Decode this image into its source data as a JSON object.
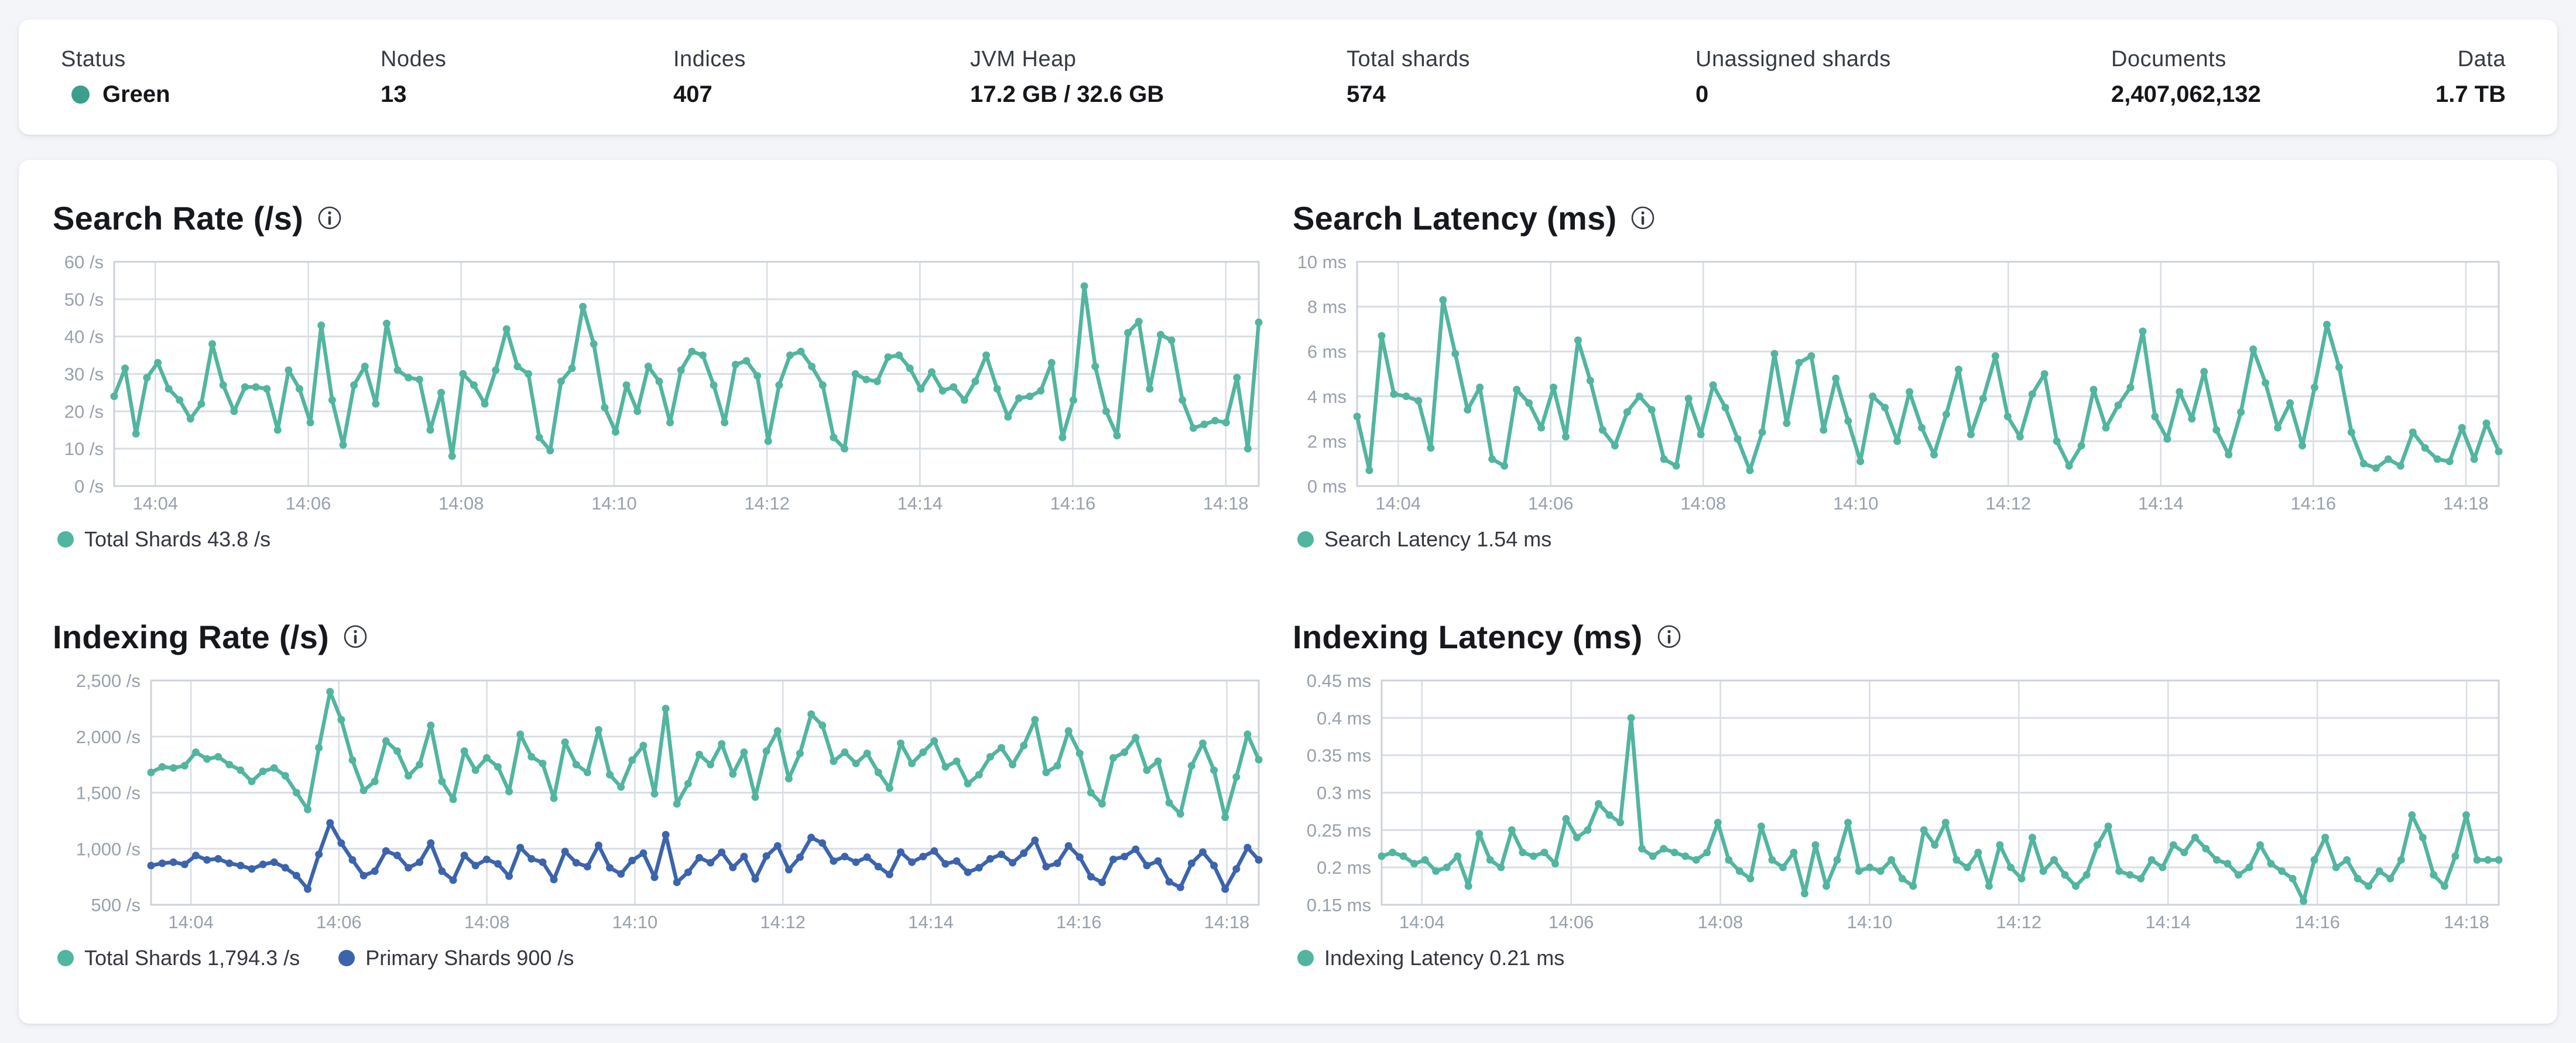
{
  "header": {
    "stats": [
      {
        "label": "Status",
        "value": "Green",
        "dot_color": "#3d9e8c"
      },
      {
        "label": "Nodes",
        "value": "13"
      },
      {
        "label": "Indices",
        "value": "407"
      },
      {
        "label": "JVM Heap",
        "value": "17.2 GB / 32.6 GB"
      },
      {
        "label": "Total shards",
        "value": "574"
      },
      {
        "label": "Unassigned shards",
        "value": "0"
      },
      {
        "label": "Documents",
        "value": "2,407,062,132"
      },
      {
        "label": "Data",
        "value": "1.7 TB"
      }
    ]
  },
  "colors": {
    "teal": "#52b5a0",
    "blue": "#3c64ac",
    "grid": "#d9dde4",
    "axis_text": "#98a0ad",
    "status_green": "#3d9e8c"
  },
  "chart_data": [
    {
      "type": "line",
      "title": "Search Rate (/s)",
      "ylabel": "/s",
      "ylim": [
        0,
        60
      ],
      "grid": true,
      "legend_position": "bottom",
      "plot_left": 105,
      "y_ticks": [
        {
          "value": 60,
          "label": "60 /s"
        },
        {
          "value": 50,
          "label": "50 /s"
        },
        {
          "value": 40,
          "label": "40 /s"
        },
        {
          "value": 30,
          "label": "30 /s"
        },
        {
          "value": 20,
          "label": "20 /s"
        },
        {
          "value": 10,
          "label": "10 /s"
        },
        {
          "value": 0,
          "label": "0 /s"
        }
      ],
      "x_ticks": [
        "14:04",
        "14:06",
        "14:08",
        "14:10",
        "14:12",
        "14:14",
        "14:16",
        "14:18"
      ],
      "series": [
        {
          "name": "Total Shards",
          "color": "#52b5a0",
          "legend_label": "Total Shards 43.8 /s",
          "current_value": "43.8 /s",
          "values": [
            24,
            31.5,
            14,
            29,
            33,
            26,
            23,
            18,
            22,
            38,
            27,
            20,
            26.5,
            26.5,
            26,
            15,
            31,
            26,
            17,
            43,
            23,
            11,
            27,
            32,
            22,
            43.5,
            31,
            29,
            28.5,
            15,
            25,
            8,
            30,
            27,
            22,
            31,
            42,
            32,
            30,
            13,
            9.5,
            28,
            31.5,
            48,
            38,
            21,
            14.5,
            27,
            20,
            32,
            28,
            17,
            31,
            36,
            35,
            27,
            17,
            32.5,
            33.5,
            29.5,
            12,
            27,
            35,
            36,
            32,
            27,
            13,
            10,
            30,
            28.5,
            28,
            34.5,
            35,
            31.5,
            26,
            30.5,
            25.5,
            26.5,
            23,
            28,
            35,
            26,
            18.5,
            23.5,
            24,
            25.5,
            33,
            13,
            23,
            53.5,
            32,
            20,
            13.5,
            41,
            44,
            26,
            40.5,
            39,
            23,
            15.5,
            16.5,
            17.5,
            17,
            29,
            10,
            43.8
          ]
        }
      ]
    },
    {
      "type": "line",
      "title": "Search Latency (ms)",
      "ylabel": "ms",
      "ylim": [
        0,
        10
      ],
      "grid": true,
      "legend_position": "bottom",
      "plot_left": 110,
      "y_ticks": [
        {
          "value": 10,
          "label": "10 ms"
        },
        {
          "value": 8,
          "label": "8 ms"
        },
        {
          "value": 6,
          "label": "6 ms"
        },
        {
          "value": 4,
          "label": "4 ms"
        },
        {
          "value": 2,
          "label": "2 ms"
        },
        {
          "value": 0,
          "label": "0 ms"
        }
      ],
      "x_ticks": [
        "14:04",
        "14:06",
        "14:08",
        "14:10",
        "14:12",
        "14:14",
        "14:16",
        "14:18"
      ],
      "series": [
        {
          "name": "Search Latency",
          "color": "#52b5a0",
          "legend_label": "Search Latency 1.54 ms",
          "current_value": "1.54 ms",
          "values": [
            3.1,
            0.7,
            6.7,
            4.1,
            4.0,
            3.8,
            1.7,
            8.3,
            5.9,
            3.4,
            4.4,
            1.2,
            0.9,
            4.3,
            3.7,
            2.6,
            4.4,
            2.2,
            6.5,
            4.7,
            2.5,
            1.8,
            3.3,
            4.0,
            3.4,
            1.2,
            0.9,
            3.9,
            2.3,
            4.5,
            3.5,
            2.1,
            0.7,
            2.4,
            5.9,
            2.8,
            5.5,
            5.8,
            2.5,
            4.8,
            2.9,
            1.1,
            4.0,
            3.5,
            2.0,
            4.2,
            2.6,
            1.4,
            3.2,
            5.2,
            2.3,
            3.9,
            5.8,
            3.1,
            2.2,
            4.1,
            5.0,
            2.0,
            0.9,
            1.8,
            4.3,
            2.6,
            3.6,
            4.4,
            6.9,
            3.1,
            2.1,
            4.2,
            3.0,
            5.1,
            2.5,
            1.4,
            3.3,
            6.1,
            4.6,
            2.6,
            3.7,
            1.8,
            4.4,
            7.2,
            5.3,
            2.4,
            1.0,
            0.8,
            1.2,
            0.9,
            2.4,
            1.7,
            1.2,
            1.1,
            2.6,
            1.2,
            2.8,
            1.54
          ]
        }
      ]
    },
    {
      "type": "line",
      "title": "Indexing Rate (/s)",
      "ylabel": "/s",
      "ylim": [
        500,
        2500
      ],
      "grid": true,
      "legend_position": "bottom",
      "plot_left": 168,
      "y_ticks": [
        {
          "value": 2500,
          "label": "2,500 /s"
        },
        {
          "value": 2000,
          "label": "2,000 /s"
        },
        {
          "value": 1500,
          "label": "1,500 /s"
        },
        {
          "value": 1000,
          "label": "1,000 /s"
        },
        {
          "value": 500,
          "label": "500 /s"
        }
      ],
      "x_ticks": [
        "14:04",
        "14:06",
        "14:08",
        "14:10",
        "14:12",
        "14:14",
        "14:16",
        "14:18"
      ],
      "series": [
        {
          "name": "Total Shards",
          "color": "#52b5a0",
          "legend_label": "Total Shards 1,794.3 /s",
          "current_value": "1,794.3 /s",
          "values": [
            1680,
            1730,
            1720,
            1740,
            1860,
            1800,
            1820,
            1750,
            1700,
            1600,
            1690,
            1720,
            1650,
            1500,
            1350,
            1900,
            2400,
            2150,
            1790,
            1520,
            1600,
            1960,
            1870,
            1650,
            1750,
            2100,
            1600,
            1440,
            1870,
            1700,
            1810,
            1730,
            1510,
            2020,
            1820,
            1760,
            1450,
            1950,
            1750,
            1680,
            2060,
            1660,
            1550,
            1790,
            1920,
            1490,
            2250,
            1400,
            1580,
            1840,
            1750,
            1935,
            1666,
            1860,
            1460,
            1870,
            2050,
            1625,
            1850,
            2200,
            2100,
            1780,
            1860,
            1760,
            1850,
            1680,
            1540,
            1940,
            1760,
            1860,
            1960,
            1730,
            1780,
            1580,
            1660,
            1820,
            1900,
            1750,
            1920,
            2150,
            1680,
            1740,
            2050,
            1850,
            1500,
            1400,
            1810,
            1860,
            1990,
            1700,
            1780,
            1410,
            1310,
            1740,
            1940,
            1700,
            1280,
            1640,
            2020,
            1794.3
          ]
        },
        {
          "name": "Primary Shards",
          "color": "#3c64ac",
          "legend_label": "Primary Shards 900 /s",
          "current_value": "900 /s",
          "values": [
            850,
            870,
            880,
            860,
            940,
            900,
            910,
            870,
            850,
            820,
            860,
            880,
            830,
            760,
            640,
            950,
            1230,
            1050,
            900,
            760,
            800,
            980,
            940,
            830,
            880,
            1050,
            800,
            720,
            940,
            850,
            905,
            865,
            755,
            1010,
            910,
            880,
            725,
            975,
            875,
            840,
            1030,
            830,
            775,
            895,
            960,
            745,
            1125,
            700,
            790,
            920,
            875,
            968,
            833,
            930,
            730,
            935,
            1025,
            813,
            925,
            1100,
            1050,
            890,
            930,
            880,
            925,
            840,
            770,
            970,
            880,
            930,
            980,
            865,
            890,
            790,
            830,
            910,
            950,
            875,
            960,
            1075,
            840,
            870,
            1025,
            925,
            750,
            700,
            905,
            930,
            995,
            850,
            890,
            705,
            655,
            870,
            970,
            850,
            640,
            820,
            1010,
            900
          ]
        }
      ]
    },
    {
      "type": "line",
      "title": "Indexing Latency (ms)",
      "ylabel": "ms",
      "ylim": [
        0.15,
        0.45
      ],
      "grid": true,
      "legend_position": "bottom",
      "plot_left": 152,
      "y_ticks": [
        {
          "value": 0.45,
          "label": "0.45 ms"
        },
        {
          "value": 0.4,
          "label": "0.4 ms"
        },
        {
          "value": 0.35,
          "label": "0.35 ms"
        },
        {
          "value": 0.3,
          "label": "0.3 ms"
        },
        {
          "value": 0.25,
          "label": "0.25 ms"
        },
        {
          "value": 0.2,
          "label": "0.2 ms"
        },
        {
          "value": 0.15,
          "label": "0.15 ms"
        }
      ],
      "x_ticks": [
        "14:04",
        "14:06",
        "14:08",
        "14:10",
        "14:12",
        "14:14",
        "14:16",
        "14:18"
      ],
      "series": [
        {
          "name": "Indexing Latency",
          "color": "#52b5a0",
          "legend_label": "Indexing Latency 0.21 ms",
          "current_value": "0.21 ms",
          "values": [
            0.215,
            0.22,
            0.215,
            0.205,
            0.21,
            0.195,
            0.2,
            0.215,
            0.175,
            0.245,
            0.21,
            0.2,
            0.25,
            0.22,
            0.215,
            0.22,
            0.205,
            0.265,
            0.24,
            0.25,
            0.285,
            0.27,
            0.26,
            0.4,
            0.225,
            0.215,
            0.225,
            0.22,
            0.215,
            0.21,
            0.22,
            0.26,
            0.21,
            0.195,
            0.185,
            0.255,
            0.21,
            0.2,
            0.22,
            0.165,
            0.23,
            0.175,
            0.21,
            0.26,
            0.195,
            0.2,
            0.195,
            0.21,
            0.185,
            0.175,
            0.25,
            0.23,
            0.26,
            0.21,
            0.2,
            0.22,
            0.175,
            0.23,
            0.2,
            0.185,
            0.24,
            0.195,
            0.21,
            0.19,
            0.175,
            0.19,
            0.23,
            0.255,
            0.195,
            0.19,
            0.185,
            0.21,
            0.2,
            0.23,
            0.22,
            0.24,
            0.225,
            0.21,
            0.205,
            0.19,
            0.2,
            0.23,
            0.205,
            0.195,
            0.185,
            0.155,
            0.21,
            0.24,
            0.2,
            0.21,
            0.185,
            0.175,
            0.195,
            0.185,
            0.21,
            0.27,
            0.24,
            0.19,
            0.175,
            0.215,
            0.27,
            0.21,
            0.21,
            0.21
          ]
        }
      ]
    }
  ]
}
